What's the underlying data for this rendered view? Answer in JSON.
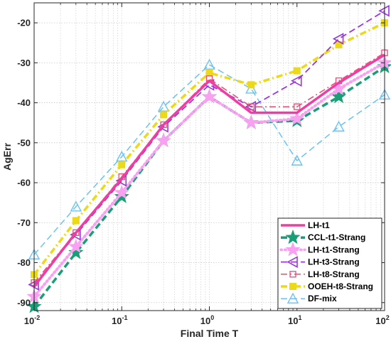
{
  "chart_data": {
    "type": "line",
    "xlabel": "Final Time T",
    "ylabel": "AgErr",
    "xscale": "log",
    "xlim": [
      0.01,
      100
    ],
    "ylim": [
      -92,
      -15
    ],
    "xticks": [
      {
        "value": 0.01,
        "base": "10",
        "exp": "-2"
      },
      {
        "value": 0.1,
        "base": "10",
        "exp": "-1"
      },
      {
        "value": 1,
        "base": "10",
        "exp": "0"
      },
      {
        "value": 10,
        "base": "10",
        "exp": "1"
      },
      {
        "value": 100,
        "base": "10",
        "exp": "2"
      }
    ],
    "yticks": [
      -90,
      -80,
      -70,
      -60,
      -50,
      -40,
      -30,
      -20
    ],
    "ytick_labels": [
      "-90",
      "-80",
      "-70",
      "-60",
      "-50",
      "-40",
      "-30",
      "-20"
    ],
    "grid": true,
    "legend_position": "bottom-right",
    "x": [
      0.01,
      0.03,
      0.1,
      0.3,
      1,
      3,
      10,
      30,
      100
    ],
    "series": [
      {
        "name": "LH-t1",
        "color": "#ee3da3",
        "dash": "solid",
        "width": 3.5,
        "marker": "none",
        "values": [
          -86,
          -72.5,
          -59,
          -45.5,
          -34.5,
          -42.5,
          -42.5,
          -35,
          -28
        ]
      },
      {
        "name": "CCL-t1-Strang",
        "color": "#1a9e77",
        "dash": "dash",
        "width": 3.5,
        "marker": "star",
        "values": [
          -91,
          -77.5,
          -63.5,
          -49.5,
          -38.5,
          -45,
          -44.5,
          -38.5,
          -31
        ]
      },
      {
        "name": "LH-t1-Strang",
        "color": "#f9a0f2",
        "dash": "dot",
        "width": 4,
        "marker": "star",
        "values": [
          -88.5,
          -76,
          -62.5,
          -49.5,
          -38.5,
          -45,
          -44,
          -36.5,
          -30
        ]
      },
      {
        "name": "LH-t3-Strang",
        "color": "#9a38d8",
        "dash": "dash",
        "width": 1.8,
        "marker": "triangle-left",
        "values": [
          -85.5,
          -73,
          -59.5,
          -46,
          -35.5,
          -41,
          -34.5,
          -24,
          -17
        ]
      },
      {
        "name": "LH-t8-Strang",
        "color": "#e64c76",
        "dash": "dashdot",
        "width": 1.5,
        "marker": "square-open",
        "values": [
          -85,
          -72.5,
          -58.5,
          -45.5,
          -34,
          -41,
          -41,
          -34.5,
          -27.5
        ]
      },
      {
        "name": "OOEH-t8-Strang",
        "color": "#ecd917",
        "dash": "dashdot",
        "width": 3.5,
        "marker": "square",
        "values": [
          -83,
          -69.5,
          -55.5,
          -43,
          -32.5,
          -35.5,
          -32,
          -25.5,
          -20
        ]
      },
      {
        "name": "DF-mix",
        "color": "#6cc3f0",
        "dash": "dash",
        "width": 1.5,
        "marker": "triangle-up",
        "values": [
          -78,
          -66,
          -53.5,
          -41,
          -30.5,
          -36.5,
          -54.5,
          -46,
          -38
        ]
      }
    ]
  }
}
